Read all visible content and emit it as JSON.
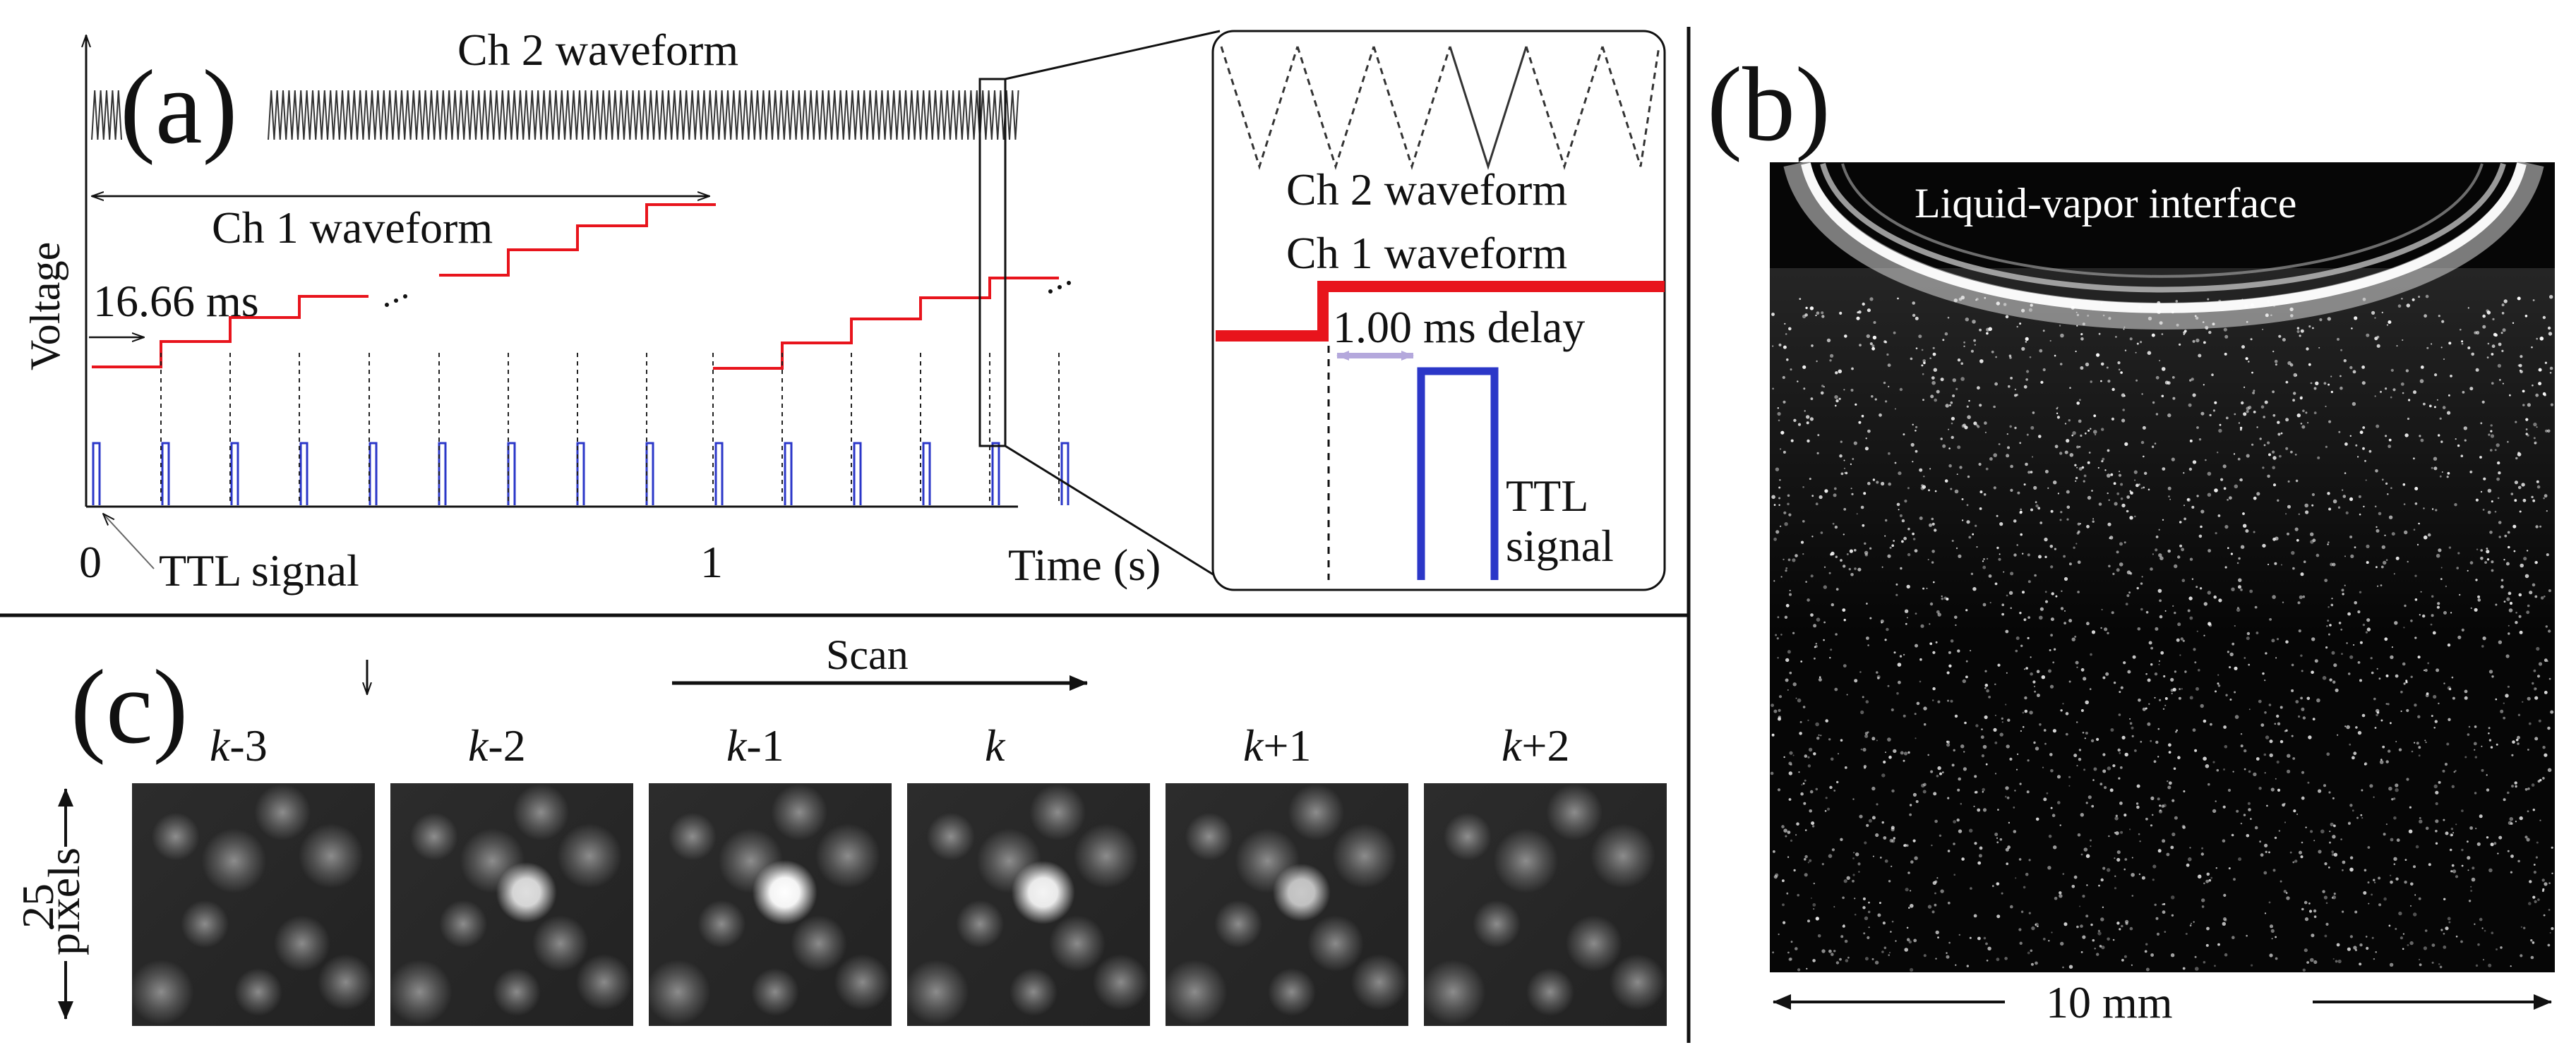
{
  "colors": {
    "ch1": "#e8141c",
    "ttl": "#2b37c8",
    "ch2": "#333333",
    "delay_arrow": "#b4a8dc",
    "background": "#ffffff",
    "ink": "#111111",
    "photo_bg": "#060606"
  },
  "panel_a": {
    "label": "(a)",
    "ch2_title": "Ch 2 waveform",
    "ch1_title": "Ch 1 waveform",
    "y_axis_label": "Voltage",
    "x_axis_label": "Time (s)",
    "tick_0": "0",
    "tick_1": "1",
    "period_label": "16.66 ms",
    "ttl_label": "TTL signal",
    "inset": {
      "ch2_label": "Ch 2 waveform",
      "ch1_label": "Ch 1 waveform",
      "delay_label": "1.00 ms delay",
      "ttl_line1": "TTL",
      "ttl_line2": "signal"
    }
  },
  "panel_b": {
    "label": "(b)",
    "interface_label": "Liquid-vapor interface",
    "scale_label": "10 mm"
  },
  "panel_c": {
    "label": "(c)",
    "scan_label": "Scan",
    "size_value": "25",
    "size_unit": "pixels",
    "frames": [
      {
        "var": "k",
        "suffix": "-3",
        "brightness": 0.0
      },
      {
        "var": "k",
        "suffix": "-2",
        "brightness": 0.85
      },
      {
        "var": "k",
        "suffix": "-1",
        "brightness": 1.0
      },
      {
        "var": "k",
        "suffix": "",
        "brightness": 0.95
      },
      {
        "var": "k",
        "suffix": "+1",
        "brightness": 0.75
      },
      {
        "var": "k",
        "suffix": "+2",
        "brightness": 0.0
      }
    ]
  }
}
